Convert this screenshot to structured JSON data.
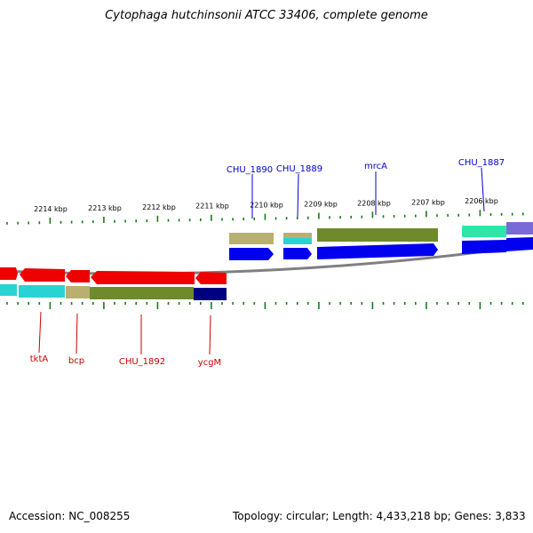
{
  "title": "Cytophaga hutchinsonii ATCC 33406, complete genome",
  "footer": {
    "accession": "Accession: NC_008255",
    "topology": "Topology: circular; Length: 4,433,218 bp; Genes: 3,833"
  },
  "ticks": [
    "2214 kbp",
    "2213 kbp",
    "2212 kbp",
    "2211 kbp",
    "2210 kbp",
    "2209 kbp",
    "2208 kbp",
    "2207 kbp",
    "2206 kbp"
  ],
  "genes_forward": [
    "CHU_1890",
    "CHU_1889",
    "mrcA",
    "CHU_1887"
  ],
  "genes_reverse": [
    "tktA",
    "bcp",
    "CHU_1892",
    "ycgM"
  ],
  "colors": {
    "forward_gene": "#0000ee",
    "reverse_gene": "#ee0000",
    "forward_label": "#0000cc",
    "reverse_label": "#cc0000",
    "tick": "#1a7a1a",
    "backbone": "#808080",
    "cog_khaki": "#b8b070",
    "cog_cyan": "#2ad3d3",
    "cog_olive": "#6f8a2a",
    "cog_teal": "#2ee6a8",
    "cog_purple": "#7a6ad8",
    "cog_navy": "#000080"
  }
}
